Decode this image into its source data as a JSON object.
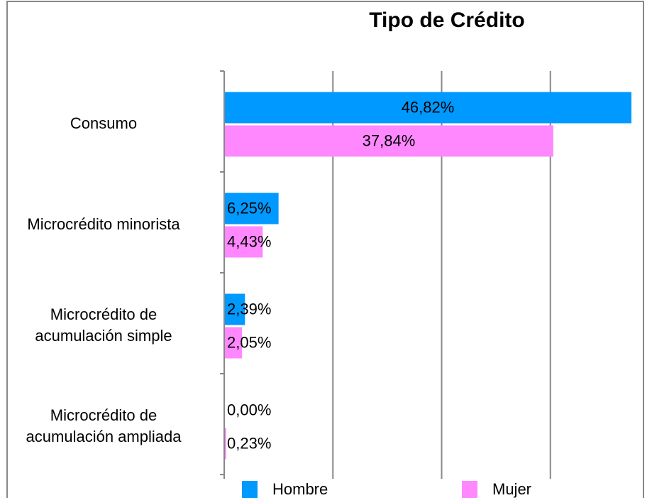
{
  "chart_data": {
    "type": "barh",
    "title": "Tipo de Crédito",
    "categories": [
      "Consumo",
      "Microcrédito minorista",
      "Microcrédito de\nacumulación simple",
      "Microcrédito de\nacumulación ampliada"
    ],
    "series": [
      {
        "name": "Hombre",
        "color": "#0099ff",
        "values": [
          46.82,
          6.25,
          2.39,
          0.0
        ],
        "value_labels": [
          "46,82%",
          "6,25%",
          "2,39%",
          "0,00%"
        ]
      },
      {
        "name": "Mujer",
        "color": "#ff88ff",
        "values": [
          37.84,
          4.43,
          2.05,
          0.23
        ],
        "value_labels": [
          "37,84%",
          "4,43%",
          "2,05%",
          "0,23%"
        ]
      }
    ],
    "xlim": [
      0,
      50
    ],
    "xticks": [
      0,
      12.5,
      25,
      37.5,
      50
    ],
    "grid": true
  }
}
